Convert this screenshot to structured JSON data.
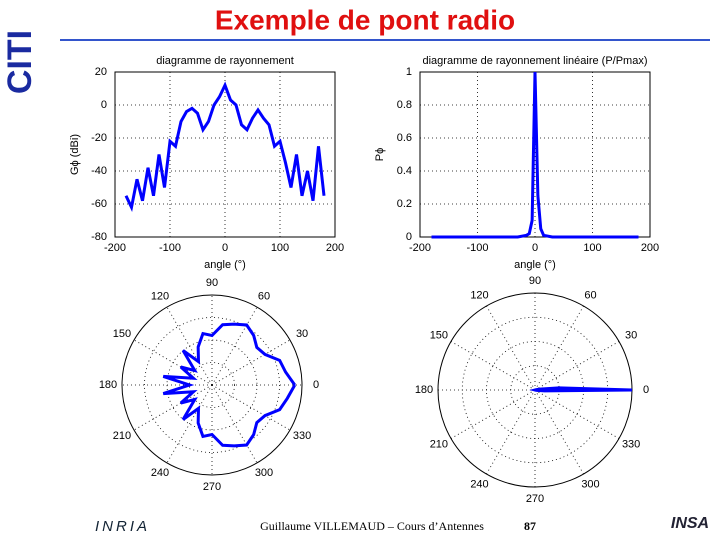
{
  "slide": {
    "title": "Exemple de pont radio",
    "footer": "Guillaume VILLEMAUD – Cours d’Antennes",
    "page": "87",
    "logo_left": "CITI",
    "logo_inria": "INRIA",
    "logo_insa": "INSA"
  },
  "chart_data": [
    {
      "type": "line",
      "title": "diagramme de rayonnement",
      "x_label": "angle (°)",
      "y_label": "Gϕ (dBi)",
      "color": "#0000ff",
      "x": [
        -180,
        -170,
        -160,
        -150,
        -140,
        -130,
        -120,
        -110,
        -100,
        -90,
        -80,
        -70,
        -60,
        -50,
        -40,
        -30,
        -20,
        -10,
        0,
        10,
        20,
        30,
        40,
        50,
        60,
        70,
        80,
        90,
        100,
        110,
        120,
        130,
        140,
        150,
        160,
        170,
        180
      ],
      "values": [
        -55,
        -62,
        -45,
        -58,
        -38,
        -55,
        -30,
        -50,
        -22,
        -25,
        -10,
        -4,
        -2,
        -5,
        -15,
        -10,
        0,
        5,
        12,
        3,
        0,
        -12,
        -15,
        -8,
        -3,
        -8,
        -12,
        -25,
        -22,
        -35,
        -50,
        -30,
        -55,
        -40,
        -58,
        -25,
        -55
      ],
      "xlim": [
        -200,
        200
      ],
      "ylim": [
        -80,
        20
      ],
      "xticks": [
        -200,
        -100,
        0,
        100,
        200
      ],
      "yticks": [
        20,
        0,
        -20,
        -40,
        -60,
        -80
      ],
      "grid": true
    },
    {
      "type": "line",
      "title": "diagramme de rayonnement linéaire (P/Pmax)",
      "x_label": "angle (°)",
      "y_label": "Pϕ",
      "color": "#0000ff",
      "x": [
        -180,
        -150,
        -120,
        -90,
        -60,
        -30,
        -15,
        -10,
        -5,
        0,
        5,
        10,
        15,
        30,
        60,
        90,
        120,
        150,
        180
      ],
      "values": [
        0,
        0,
        0,
        0,
        0,
        0,
        0.01,
        0.02,
        0.1,
        1,
        0.25,
        0.05,
        0.01,
        0,
        0,
        0,
        0,
        0,
        0
      ],
      "xlim": [
        -200,
        200
      ],
      "ylim": [
        0,
        1
      ],
      "xticks": [
        -200,
        -100,
        0,
        100,
        200
      ],
      "yticks": [
        0,
        0.2,
        0.4,
        0.6,
        0.8,
        1
      ],
      "grid": true
    },
    {
      "type": "polar",
      "color": "#0000ff",
      "x": [
        0,
        10,
        20,
        30,
        40,
        50,
        60,
        70,
        80,
        90,
        100,
        110,
        120,
        130,
        140,
        150,
        160,
        170,
        180,
        190,
        200,
        210,
        220,
        230,
        240,
        250,
        260,
        270,
        280,
        290,
        300,
        310,
        320,
        330,
        340,
        350,
        360
      ],
      "values": [
        12,
        3,
        0,
        -12,
        -15,
        -8,
        -3,
        -8,
        -12,
        -25,
        -22,
        -35,
        -50,
        -30,
        -55,
        -40,
        -58,
        -25,
        -55,
        -25,
        -58,
        -40,
        -55,
        -30,
        -50,
        -35,
        -22,
        -25,
        -12,
        -8,
        -3,
        -8,
        -15,
        -12,
        0,
        5,
        12
      ],
      "rlim": [
        -80,
        20
      ],
      "thetaticks": [
        0,
        30,
        60,
        90,
        120,
        150,
        180,
        210,
        240,
        270,
        300,
        330
      ]
    },
    {
      "type": "polar",
      "color": "#0000ff",
      "x": [
        0,
        5,
        10,
        15,
        30,
        60,
        90,
        120,
        150,
        180,
        210,
        240,
        270,
        300,
        330,
        345,
        350,
        355,
        360
      ],
      "values": [
        1,
        0.25,
        0.05,
        0.01,
        0,
        0,
        0,
        0,
        0,
        0,
        0,
        0,
        0,
        0,
        0,
        0.01,
        0.02,
        0.1,
        1
      ],
      "rlim": [
        0,
        1
      ],
      "thetaticks": [
        0,
        30,
        60,
        90,
        120,
        150,
        180,
        210,
        240,
        270,
        300,
        330
      ]
    }
  ]
}
